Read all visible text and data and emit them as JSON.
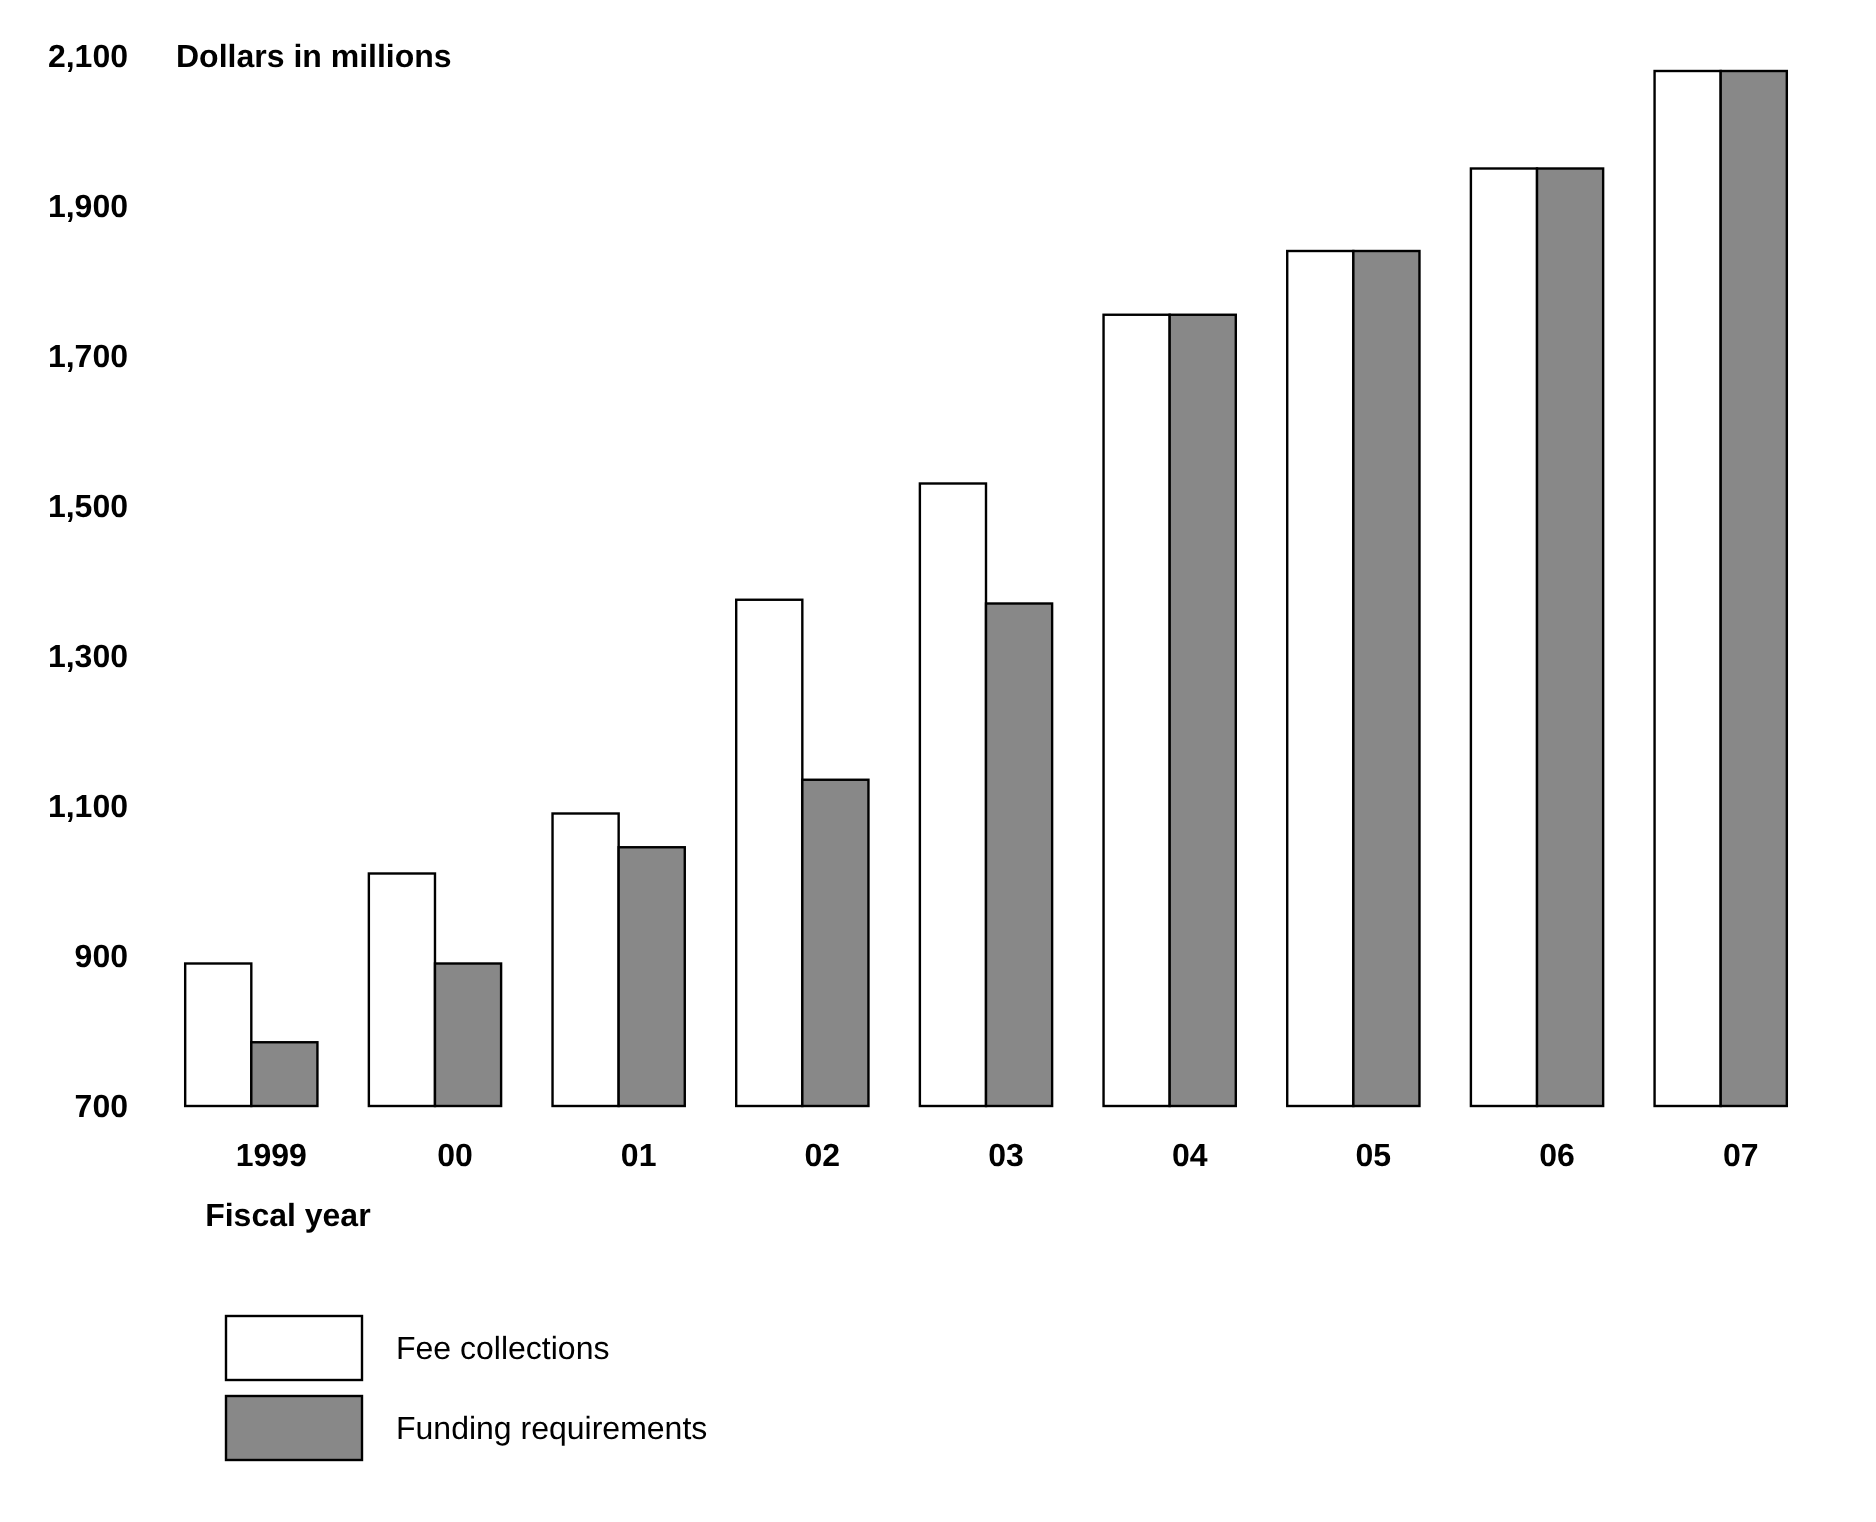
{
  "chart_data": {
    "type": "bar",
    "ylabel": "Dollars in millions",
    "xlabel": "Fiscal year",
    "categories": [
      "1999",
      "00",
      "01",
      "02",
      "03",
      "04",
      "05",
      "06",
      "07"
    ],
    "series": [
      {
        "name": "Fee collections",
        "color": "#ffffff",
        "values": [
          890,
          1010,
          1090,
          1375,
          1530,
          1755,
          1840,
          1950,
          2080
        ]
      },
      {
        "name": "Funding requirements",
        "color": "#888888",
        "values": [
          785,
          890,
          1045,
          1135,
          1370,
          1755,
          1840,
          1950,
          2080
        ]
      }
    ],
    "ylim": [
      700,
      2100
    ],
    "yticks": [
      700,
      900,
      {
        "value": 1100,
        "label": "1,100"
      },
      {
        "value": 1300,
        "label": "1,300"
      },
      {
        "value": 1500,
        "label": "1,500"
      },
      {
        "value": 1700,
        "label": "1,700"
      },
      {
        "value": 1900,
        "label": "1,900"
      },
      {
        "value": 2100,
        "label": "2,100"
      }
    ],
    "legend": "bottom left",
    "grid": false
  }
}
